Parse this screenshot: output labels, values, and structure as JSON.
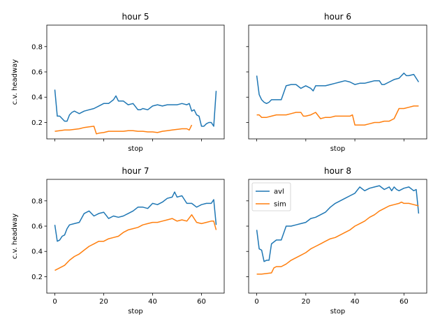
{
  "chart_data": {
    "type": "line",
    "layout": "2x2",
    "ylim": [
      0.07,
      0.97
    ],
    "xlim": [
      -3.3,
      69.3
    ],
    "x_ticks": [
      0,
      20,
      40,
      60
    ],
    "y_ticks": [
      0.2,
      0.4,
      0.6,
      0.8
    ],
    "x_tick_labels": [
      "0",
      "20",
      "40",
      "60"
    ],
    "y_tick_labels": [
      "0.2",
      "0.4",
      "0.6",
      "0.8"
    ],
    "xlabel": "stop",
    "ylabel": "c.v. headway",
    "legend": {
      "panel": 3,
      "placement": "upper-left",
      "entries": [
        "avl",
        "sim"
      ]
    },
    "series_colors": {
      "avl": "#1f77b4",
      "sim": "#ff7f0e"
    },
    "panels": [
      {
        "title": "hour 5",
        "series": [
          {
            "name": "avl",
            "x": [
              0,
              1,
              2,
              3,
              4,
              5,
              6,
              7,
              8,
              9,
              10,
              12,
              14,
              16,
              18,
              20,
              22,
              24,
              25,
              26,
              28,
              30,
              32,
              34,
              35,
              36,
              38,
              40,
              42,
              44,
              46,
              48,
              50,
              52,
              54,
              55,
              56,
              57,
              58,
              59,
              60,
              61,
              62,
              63,
              64,
              65,
              66
            ],
            "y": [
              0.46,
              0.25,
              0.25,
              0.23,
              0.21,
              0.21,
              0.26,
              0.28,
              0.29,
              0.28,
              0.27,
              0.29,
              0.3,
              0.31,
              0.33,
              0.35,
              0.35,
              0.38,
              0.41,
              0.37,
              0.37,
              0.34,
              0.35,
              0.3,
              0.3,
              0.31,
              0.3,
              0.33,
              0.34,
              0.33,
              0.34,
              0.34,
              0.34,
              0.35,
              0.34,
              0.35,
              0.29,
              0.3,
              0.26,
              0.25,
              0.17,
              0.17,
              0.19,
              0.2,
              0.2,
              0.17,
              0.45
            ]
          },
          {
            "name": "sim",
            "x": [
              0,
              2,
              4,
              6,
              8,
              10,
              12,
              14,
              16,
              17,
              18,
              20,
              22,
              24,
              26,
              28,
              30,
              32,
              34,
              36,
              38,
              40,
              42,
              44,
              46,
              48,
              50,
              52,
              54,
              55,
              56
            ],
            "y": [
              0.13,
              0.135,
              0.14,
              0.14,
              0.145,
              0.15,
              0.16,
              0.165,
              0.17,
              0.11,
              0.115,
              0.12,
              0.13,
              0.13,
              0.13,
              0.13,
              0.135,
              0.135,
              0.13,
              0.13,
              0.125,
              0.125,
              0.12,
              0.13,
              0.135,
              0.14,
              0.145,
              0.15,
              0.15,
              0.14,
              0.18
            ]
          }
        ]
      },
      {
        "title": "hour 6",
        "series": [
          {
            "name": "avl",
            "x": [
              0,
              1,
              2,
              3,
              4,
              5,
              6,
              8,
              10,
              12,
              14,
              16,
              18,
              19,
              20,
              22,
              23,
              24,
              26,
              28,
              30,
              32,
              34,
              36,
              38,
              40,
              42,
              44,
              46,
              48,
              50,
              51,
              52,
              54,
              56,
              58,
              60,
              61,
              62,
              64,
              66
            ],
            "y": [
              0.57,
              0.42,
              0.38,
              0.36,
              0.35,
              0.36,
              0.38,
              0.38,
              0.38,
              0.49,
              0.5,
              0.5,
              0.47,
              0.48,
              0.49,
              0.47,
              0.45,
              0.49,
              0.49,
              0.49,
              0.5,
              0.51,
              0.52,
              0.53,
              0.52,
              0.5,
              0.51,
              0.51,
              0.52,
              0.53,
              0.53,
              0.5,
              0.5,
              0.52,
              0.54,
              0.55,
              0.59,
              0.57,
              0.57,
              0.58,
              0.52
            ]
          },
          {
            "name": "sim",
            "x": [
              0,
              1,
              2,
              3,
              4,
              6,
              8,
              10,
              12,
              14,
              16,
              18,
              19,
              20,
              22,
              24,
              26,
              28,
              30,
              32,
              34,
              36,
              38,
              39,
              40,
              42,
              44,
              46,
              48,
              50,
              52,
              54,
              56,
              58,
              59,
              60,
              62,
              64,
              66
            ],
            "y": [
              0.26,
              0.26,
              0.24,
              0.24,
              0.24,
              0.25,
              0.26,
              0.26,
              0.26,
              0.27,
              0.28,
              0.28,
              0.25,
              0.25,
              0.26,
              0.28,
              0.23,
              0.24,
              0.24,
              0.25,
              0.25,
              0.25,
              0.25,
              0.26,
              0.18,
              0.18,
              0.18,
              0.19,
              0.2,
              0.2,
              0.21,
              0.21,
              0.23,
              0.31,
              0.31,
              0.31,
              0.32,
              0.33,
              0.33
            ]
          }
        ]
      },
      {
        "title": "hour 7",
        "series": [
          {
            "name": "avl",
            "x": [
              0,
              1,
              2,
              3,
              4,
              5,
              6,
              8,
              10,
              12,
              14,
              16,
              18,
              20,
              22,
              24,
              26,
              28,
              30,
              32,
              34,
              36,
              38,
              40,
              42,
              44,
              46,
              48,
              49,
              50,
              52,
              54,
              56,
              58,
              59,
              60,
              62,
              64,
              65,
              66
            ],
            "y": [
              0.61,
              0.48,
              0.49,
              0.52,
              0.53,
              0.58,
              0.61,
              0.62,
              0.63,
              0.7,
              0.72,
              0.68,
              0.7,
              0.71,
              0.66,
              0.68,
              0.67,
              0.68,
              0.7,
              0.72,
              0.75,
              0.75,
              0.74,
              0.78,
              0.77,
              0.79,
              0.82,
              0.83,
              0.87,
              0.83,
              0.84,
              0.78,
              0.78,
              0.75,
              0.76,
              0.77,
              0.78,
              0.78,
              0.81,
              0.61
            ]
          },
          {
            "name": "sim",
            "x": [
              0,
              2,
              4,
              6,
              8,
              10,
              12,
              14,
              16,
              18,
              20,
              22,
              24,
              26,
              28,
              30,
              32,
              34,
              36,
              38,
              40,
              42,
              44,
              46,
              48,
              50,
              52,
              54,
              56,
              58,
              60,
              62,
              64,
              65,
              66
            ],
            "y": [
              0.25,
              0.27,
              0.29,
              0.33,
              0.36,
              0.38,
              0.41,
              0.44,
              0.46,
              0.48,
              0.48,
              0.5,
              0.51,
              0.52,
              0.55,
              0.57,
              0.58,
              0.59,
              0.61,
              0.62,
              0.63,
              0.63,
              0.64,
              0.65,
              0.66,
              0.64,
              0.65,
              0.64,
              0.69,
              0.63,
              0.62,
              0.63,
              0.64,
              0.64,
              0.57
            ]
          }
        ]
      },
      {
        "title": "hour 8",
        "series": [
          {
            "name": "avl",
            "x": [
              0,
              1,
              2,
              3,
              4,
              5,
              6,
              8,
              10,
              12,
              14,
              16,
              18,
              20,
              22,
              24,
              26,
              28,
              30,
              32,
              34,
              36,
              38,
              40,
              42,
              44,
              46,
              48,
              50,
              52,
              54,
              55,
              56,
              57,
              58,
              60,
              62,
              64,
              65,
              66
            ],
            "y": [
              0.57,
              0.42,
              0.41,
              0.32,
              0.33,
              0.33,
              0.46,
              0.49,
              0.49,
              0.6,
              0.6,
              0.61,
              0.62,
              0.63,
              0.66,
              0.67,
              0.69,
              0.71,
              0.75,
              0.78,
              0.8,
              0.82,
              0.84,
              0.86,
              0.91,
              0.88,
              0.9,
              0.91,
              0.92,
              0.89,
              0.91,
              0.88,
              0.91,
              0.89,
              0.88,
              0.9,
              0.91,
              0.88,
              0.89,
              0.7
            ]
          },
          {
            "name": "sim",
            "x": [
              0,
              2,
              4,
              6,
              7,
              8,
              10,
              12,
              14,
              16,
              18,
              20,
              22,
              24,
              26,
              28,
              30,
              32,
              34,
              36,
              38,
              40,
              42,
              44,
              46,
              48,
              50,
              52,
              54,
              56,
              58,
              59,
              60,
              62,
              64,
              66
            ],
            "y": [
              0.22,
              0.22,
              0.225,
              0.23,
              0.27,
              0.28,
              0.28,
              0.3,
              0.33,
              0.35,
              0.37,
              0.39,
              0.42,
              0.44,
              0.46,
              0.48,
              0.5,
              0.51,
              0.53,
              0.55,
              0.57,
              0.6,
              0.62,
              0.64,
              0.67,
              0.69,
              0.72,
              0.74,
              0.76,
              0.77,
              0.78,
              0.79,
              0.78,
              0.78,
              0.77,
              0.76
            ]
          }
        ]
      }
    ]
  }
}
